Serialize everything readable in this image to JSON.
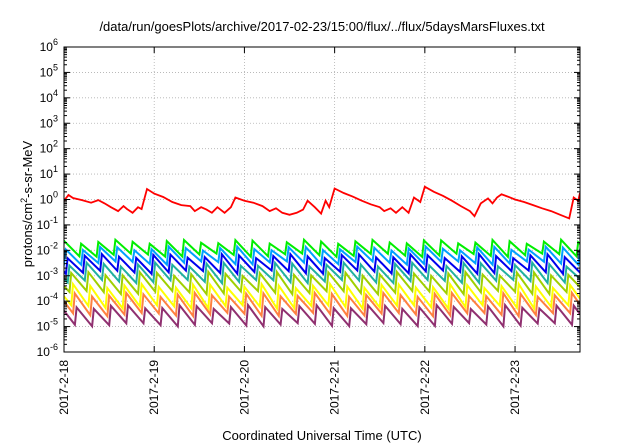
{
  "chart_data": {
    "type": "line",
    "title": "/data/run/goesPlots/archive/2017-02-23/15:00/flux/../flux/5daysMarsFluxes.txt",
    "xlabel": "Coordinated Universal Time (UTC)",
    "ylabel": {
      "prefix": "protons/cm",
      "sup": "2",
      "suffix": "-s-sr-MeV"
    },
    "yscale": "log",
    "ylim": [
      1e-06,
      1000000.0
    ],
    "xlim": [
      0,
      5.72
    ],
    "y_ticks": [
      {
        "exp": -6,
        "label_base": "10",
        "label_exp": "-6"
      },
      {
        "exp": -5,
        "label_base": "10",
        "label_exp": "-5"
      },
      {
        "exp": -4,
        "label_base": "10",
        "label_exp": "-4"
      },
      {
        "exp": -3,
        "label_base": "10",
        "label_exp": "-3"
      },
      {
        "exp": -2,
        "label_base": "10",
        "label_exp": "-2"
      },
      {
        "exp": -1,
        "label_base": "10",
        "label_exp": "-1"
      },
      {
        "exp": 0,
        "label_base": "10",
        "label_exp": "0"
      },
      {
        "exp": 1,
        "label_base": "10",
        "label_exp": "1"
      },
      {
        "exp": 2,
        "label_base": "10",
        "label_exp": "2"
      },
      {
        "exp": 3,
        "label_base": "10",
        "label_exp": "3"
      },
      {
        "exp": 4,
        "label_base": "10",
        "label_exp": "4"
      },
      {
        "exp": 5,
        "label_base": "10",
        "label_exp": "5"
      },
      {
        "exp": 6,
        "label_base": "10",
        "label_exp": "6"
      }
    ],
    "x_ticks": [
      {
        "x": 0,
        "label": "2017-2-18"
      },
      {
        "x": 1,
        "label": "2017-2-19"
      },
      {
        "x": 2,
        "label": "2017-2-20"
      },
      {
        "x": 3,
        "label": "2017-2-21"
      },
      {
        "x": 4,
        "label": "2017-2-22"
      },
      {
        "x": 5,
        "label": "2017-2-23"
      }
    ],
    "grid": true,
    "series": [
      {
        "color": "#ff0000",
        "points": [
          [
            0,
            0.9
          ],
          [
            0.05,
            1.5
          ],
          [
            0.1,
            1.15
          ],
          [
            0.2,
            0.95
          ],
          [
            0.3,
            0.75
          ],
          [
            0.38,
            0.95
          ],
          [
            0.45,
            0.7
          ],
          [
            0.52,
            0.5
          ],
          [
            0.6,
            0.35
          ],
          [
            0.66,
            0.55
          ],
          [
            0.7,
            0.42
          ],
          [
            0.76,
            0.3
          ],
          [
            0.82,
            0.5
          ],
          [
            0.86,
            0.42
          ],
          [
            0.92,
            2.6
          ],
          [
            1.0,
            1.7
          ],
          [
            1.1,
            1.25
          ],
          [
            1.2,
            0.8
          ],
          [
            1.3,
            0.6
          ],
          [
            1.4,
            0.55
          ],
          [
            1.45,
            0.35
          ],
          [
            1.52,
            0.5
          ],
          [
            1.58,
            0.4
          ],
          [
            1.64,
            0.3
          ],
          [
            1.7,
            0.5
          ],
          [
            1.78,
            0.3
          ],
          [
            1.85,
            0.5
          ],
          [
            1.9,
            1.2
          ],
          [
            2.0,
            0.9
          ],
          [
            2.1,
            0.75
          ],
          [
            2.2,
            0.55
          ],
          [
            2.28,
            0.35
          ],
          [
            2.35,
            0.45
          ],
          [
            2.42,
            0.3
          ],
          [
            2.5,
            0.25
          ],
          [
            2.58,
            0.3
          ],
          [
            2.65,
            0.4
          ],
          [
            2.7,
            0.9
          ],
          [
            2.78,
            0.5
          ],
          [
            2.85,
            0.28
          ],
          [
            2.9,
            0.9
          ],
          [
            2.94,
            0.5
          ],
          [
            3.0,
            2.7
          ],
          [
            3.1,
            1.8
          ],
          [
            3.2,
            1.3
          ],
          [
            3.3,
            0.9
          ],
          [
            3.4,
            0.65
          ],
          [
            3.5,
            0.5
          ],
          [
            3.55,
            0.35
          ],
          [
            3.62,
            0.45
          ],
          [
            3.68,
            0.3
          ],
          [
            3.75,
            0.5
          ],
          [
            3.82,
            0.3
          ],
          [
            3.88,
            1.2
          ],
          [
            3.95,
            0.8
          ],
          [
            4.0,
            3.2
          ],
          [
            4.1,
            2.0
          ],
          [
            4.2,
            1.4
          ],
          [
            4.3,
            0.9
          ],
          [
            4.4,
            0.55
          ],
          [
            4.5,
            0.35
          ],
          [
            4.55,
            0.22
          ],
          [
            4.62,
            0.7
          ],
          [
            4.7,
            1.1
          ],
          [
            4.75,
            0.7
          ],
          [
            4.8,
            1.2
          ],
          [
            4.85,
            1.6
          ],
          [
            4.92,
            1.3
          ],
          [
            5.0,
            1.0
          ],
          [
            5.1,
            0.8
          ],
          [
            5.2,
            0.6
          ],
          [
            5.3,
            0.45
          ],
          [
            5.4,
            0.35
          ],
          [
            5.5,
            0.25
          ],
          [
            5.6,
            0.18
          ],
          [
            5.65,
            1.2
          ],
          [
            5.7,
            0.9
          ],
          [
            5.72,
            1.8
          ]
        ]
      },
      {
        "color": "#00ee00",
        "base": 0.022,
        "low": 0.0065,
        "phase": 0.0
      },
      {
        "color": "#00a0ff",
        "base": 0.012,
        "low": 0.0032,
        "phase": 0.02
      },
      {
        "color": "#0000ee",
        "base": 0.006,
        "low": 0.0014,
        "phase": 0.04
      },
      {
        "color": "#20b0a0",
        "base": 0.0028,
        "low": 0.0006,
        "phase": 0.06
      },
      {
        "color": "#a0d000",
        "base": 0.0012,
        "low": 0.00022,
        "phase": 0.08
      },
      {
        "color": "#ffff00",
        "base": 0.0004,
        "low": 6e-05,
        "phase": 0.1
      },
      {
        "color": "#ff8040",
        "base": 0.00018,
        "low": 3e-05,
        "phase": 0.12
      },
      {
        "color": "#903070",
        "base": 6e-05,
        "low": 1.2e-05,
        "phase": 0.14
      }
    ],
    "period_days": 0.19
  }
}
